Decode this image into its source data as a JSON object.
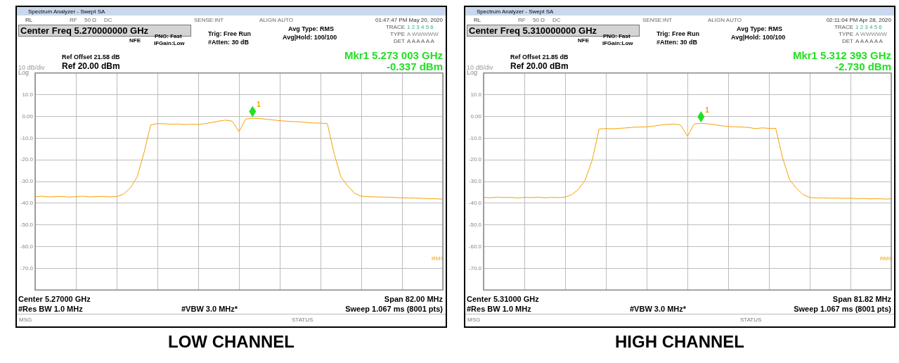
{
  "chart_data": [
    {
      "type": "line",
      "title": "LOW CHANNEL",
      "categories": [
        null,
        null,
        null,
        null,
        null,
        null,
        null,
        null,
        null,
        null,
        null,
        null,
        null,
        null,
        null,
        null,
        null,
        null,
        null,
        null,
        null,
        null,
        null,
        null,
        null,
        null,
        null,
        null,
        null,
        null,
        null,
        null,
        null,
        null,
        null,
        null,
        null,
        null,
        null,
        null,
        null,
        null,
        null,
        null,
        null,
        null,
        null,
        null,
        null,
        null,
        null,
        null,
        null,
        null,
        null,
        null,
        null,
        null,
        null,
        null,
        null
      ],
      "series": [
        {
          "color": "#f5a000",
          "values": [
            -37.0,
            -36.8,
            -37.1,
            -37.0,
            -36.9,
            -37.2,
            -37.0,
            -36.8,
            -37.1,
            -37.0,
            -36.9,
            -37.1,
            -37.0,
            -35.8,
            -33,
            -28,
            -17,
            -4,
            -3.3,
            -3.4,
            -3.6,
            -3.5,
            -3.7,
            -3.6,
            -3.7,
            -3.3,
            -2.8,
            -2.2,
            -1.7,
            -2.2,
            -7,
            -1.2,
            -0.8,
            -1.0,
            -1.3,
            -1.6,
            -2.0,
            -2.2,
            -2.4,
            -2.5,
            -2.8,
            -3.0,
            -3.1,
            -3.3,
            -17,
            -28,
            -32,
            -35.4,
            -36.8,
            -37.0,
            -37.1,
            -37.2,
            -37.2,
            -37.4,
            -37.5,
            -37.6,
            -37.6,
            -37.8,
            -37.9,
            -38.0,
            -38.1
          ]
        }
      ],
      "ylim": [
        -80,
        20
      ],
      "yticks": [
        {
          "value": 10,
          "label": "10.0"
        },
        {
          "value": 0,
          "label": "0.00"
        },
        {
          "value": -10,
          "label": "-10.0"
        },
        {
          "value": -20,
          "label": "-20.0"
        },
        {
          "value": -30,
          "label": "-30.0"
        },
        {
          "value": -40,
          "label": "-40.0"
        },
        {
          "value": -50,
          "label": "-50.0"
        },
        {
          "value": -60,
          "label": "-60.0"
        },
        {
          "value": -70,
          "label": "-70.0"
        }
      ],
      "grid": true,
      "tick_labels": "y",
      "marker": "none",
      "line_style": "solid",
      "annotations": [
        "Spectrum Analyzer - Swept SA",
        "RL",
        "RF",
        "50 Ω",
        "DC",
        "SENSE:INT",
        "ALIGN AUTO",
        "01:47:47 PM May 20, 2020",
        "Center Freq 5.270000000 GHz",
        "NFE",
        "PNO: Fast",
        "IFGain:Low",
        "Trig: Free Run",
        "#Atten: 30 dB",
        "Avg Type: RMS",
        "Avg|Hold: 100/100",
        "TRACE",
        "1 2 3 4 5 6",
        "TYPE",
        "A WWWWW",
        "DET",
        "A A A A A A",
        "Ref Offset 21.58 dB",
        "10 dB/div",
        "Ref 20.00 dBm",
        "Log",
        "Mkr1 5.273 003 GHz",
        "-0.337 dBm",
        "Center 5.27000 GHz",
        "Span 82.00 MHz",
        "#Res BW 1.0 MHz",
        "#VBW 3.0 MHz*",
        "Sweep  1.067 ms (8001 pts)",
        "MSG",
        "STATUS",
        "RMS",
        {
          "text": "1",
          "y": -0.337
        }
      ]
    },
    {
      "type": "line",
      "title": "HIGH CHANNEL",
      "categories": [
        null,
        null,
        null,
        null,
        null,
        null,
        null,
        null,
        null,
        null,
        null,
        null,
        null,
        null,
        null,
        null,
        null,
        null,
        null,
        null,
        null,
        null,
        null,
        null,
        null,
        null,
        null,
        null,
        null,
        null,
        null,
        null,
        null,
        null,
        null,
        null,
        null,
        null,
        null,
        null,
        null,
        null,
        null,
        null,
        null,
        null,
        null,
        null,
        null,
        null,
        null,
        null,
        null,
        null,
        null,
        null,
        null,
        null,
        null,
        null,
        null
      ],
      "series": [
        {
          "color": "#f5a000",
          "values": [
            -37.3,
            -37.5,
            -37.2,
            -37.4,
            -37.3,
            -37.6,
            -37.3,
            -37.4,
            -37.2,
            -37.5,
            -37.3,
            -37.4,
            -37.2,
            -36,
            -33.5,
            -29,
            -20,
            -5.8,
            -5.6,
            -5.7,
            -5.5,
            -5.3,
            -5.0,
            -4.9,
            -4.8,
            -4.5,
            -4.0,
            -3.7,
            -3.5,
            -4.0,
            -9.1,
            -3.5,
            -3.2,
            -3.4,
            -3.8,
            -4.3,
            -4.7,
            -4.8,
            -4.9,
            -5.1,
            -5.6,
            -5.3,
            -5.5,
            -5.5,
            -19,
            -29,
            -33,
            -36,
            -37.4,
            -37.6,
            -37.5,
            -37.7,
            -37.6,
            -37.8,
            -37.7,
            -37.9,
            -37.8,
            -38.0,
            -37.9,
            -38.1,
            -38.0
          ]
        }
      ],
      "ylim": [
        -80,
        20
      ],
      "yticks": [
        {
          "value": 10,
          "label": "10.0"
        },
        {
          "value": 0,
          "label": "0.00"
        },
        {
          "value": -10,
          "label": "-10.0"
        },
        {
          "value": -20,
          "label": "-20.0"
        },
        {
          "value": -30,
          "label": "-30.0"
        },
        {
          "value": -40,
          "label": "-40.0"
        },
        {
          "value": -50,
          "label": "-50.0"
        },
        {
          "value": -60,
          "label": "-60.0"
        },
        {
          "value": -70,
          "label": "-70.0"
        }
      ],
      "grid": true,
      "tick_labels": "y",
      "marker": "none",
      "line_style": "solid",
      "annotations": [
        "Spectrum Analyzer - Swept SA",
        "RL",
        "RF",
        "50 Ω",
        "DC",
        "SENSE:INT",
        "ALIGN AUTO",
        "02:11:04 PM Apr 28, 2020",
        "Center Freq 5.310000000 GHz",
        "NFE",
        "PNO: Fast",
        "IFGain:Low",
        "Trig: Free Run",
        "#Atten: 30 dB",
        "Avg Type: RMS",
        "Avg|Hold: 100/100",
        "TRACE",
        "1 2 3 4 5 6",
        "TYPE",
        "A WWWWW",
        "DET",
        "A A A A A A",
        "Ref Offset 21.85 dB",
        "10 dB/div",
        "Ref 20.00 dBm",
        "Log",
        "Mkr1 5.312 393 GHz",
        "-2.730 dBm",
        "Center 5.31000 GHz",
        "Span 81.82 MHz",
        "#Res BW 1.0 MHz",
        "#VBW 3.0 MHz*",
        "Sweep  1.067 ms (8001 pts)",
        "MSG",
        "STATUS",
        "RMS",
        {
          "text": "1",
          "y": -2.73
        }
      ]
    }
  ]
}
